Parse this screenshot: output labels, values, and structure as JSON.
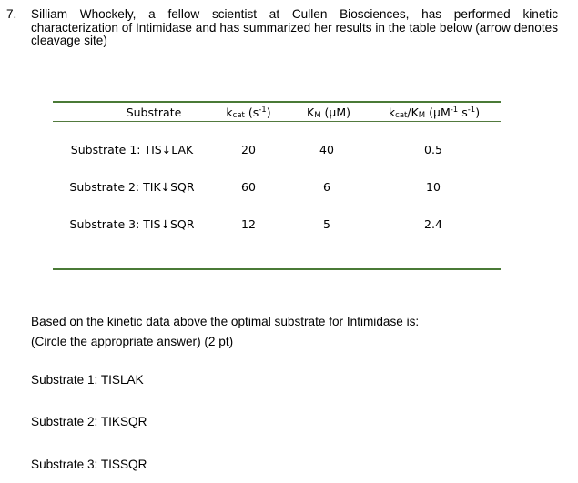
{
  "question": {
    "number": "7.",
    "text": "Silliam Whockely, a fellow scientist at Cullen Biosciences, has performed kinetic characterization of Intimidase and has summarized her results in the table below (arrow denotes cleavage site)"
  },
  "table": {
    "headers": {
      "substrate": "Substrate",
      "kcat_main": "k",
      "kcat_sub": "cat",
      "kcat_unit_open": " (s",
      "kcat_unit_sup": "-1",
      "kcat_unit_close": ")",
      "km_main": "K",
      "km_sub": "M",
      "km_unit": " (μM)",
      "ratio_main": "k",
      "ratio_sub": "cat",
      "ratio_mid": "/K",
      "ratio_sub2": "M",
      "ratio_unit_open": " (μM",
      "ratio_sup1": "-1",
      "ratio_unit_mid": " s",
      "ratio_sup2": "-1",
      "ratio_unit_close": ")"
    },
    "rows": [
      {
        "substrate": "Substrate 1: TIS↓LAK",
        "kcat": "20",
        "km": "40",
        "ratio": "0.5"
      },
      {
        "substrate": "Substrate 2: TIK↓SQR",
        "kcat": "60",
        "km": "6",
        "ratio": "10"
      },
      {
        "substrate": "Substrate 3: TIS↓SQR",
        "kcat": "12",
        "km": "5",
        "ratio": "2.4"
      }
    ]
  },
  "prompt": {
    "line1": "Based on the kinetic data above the optimal substrate for Intimidase is:",
    "line2": "(Circle the appropriate answer) (2 pt)"
  },
  "choices": [
    "Substrate 1: TISLAK",
    "Substrate 2: TIKSQR",
    "Substrate 3: TISSQR"
  ]
}
